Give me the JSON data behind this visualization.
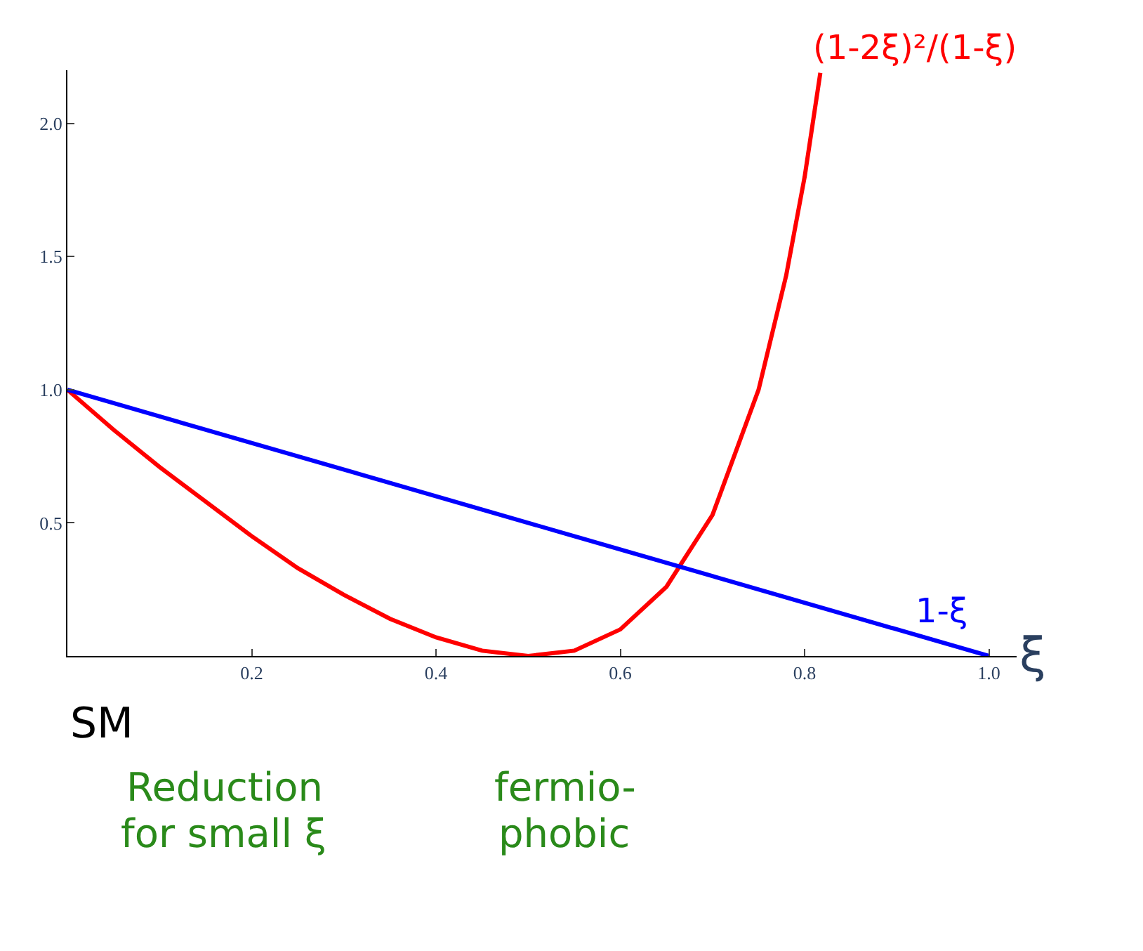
{
  "chart_data": {
    "type": "line",
    "xlabel": "ξ",
    "x": [
      0,
      0.05,
      0.1,
      0.15,
      0.2,
      0.25,
      0.3,
      0.35,
      0.4,
      0.45,
      0.5,
      0.55,
      0.6,
      0.65,
      0.7,
      0.75,
      0.78,
      0.8,
      0.817
    ],
    "series": [
      {
        "name": "(1-2ξ)²/(1-ξ)",
        "color": "#ff0000",
        "values": [
          1,
          0.85,
          0.71,
          0.58,
          0.45,
          0.33,
          0.23,
          0.14,
          0.07,
          0.02,
          0,
          0.02,
          0.1,
          0.26,
          0.53,
          1.0,
          1.43,
          1.8,
          2.19
        ]
      },
      {
        "name": "1-ξ",
        "color": "#0000ff",
        "x": [
          0,
          1
        ],
        "values": [
          1,
          0
        ]
      }
    ],
    "xlim": [
      0,
      1.03
    ],
    "ylim": [
      0,
      2.2
    ],
    "xticks": [
      0.2,
      0.4,
      0.6,
      0.8,
      {
        "value": 1,
        "label": "1.0"
      }
    ],
    "yticks": [
      0.5,
      {
        "value": 1,
        "label": "1.0"
      },
      1.5,
      {
        "value": 2,
        "label": "2.0"
      }
    ],
    "legend": false,
    "marker": "none",
    "line_style": "solid",
    "annotations": [
      "SM",
      "Reduction",
      "for small ξ",
      "fermio-",
      "phobic"
    ]
  }
}
